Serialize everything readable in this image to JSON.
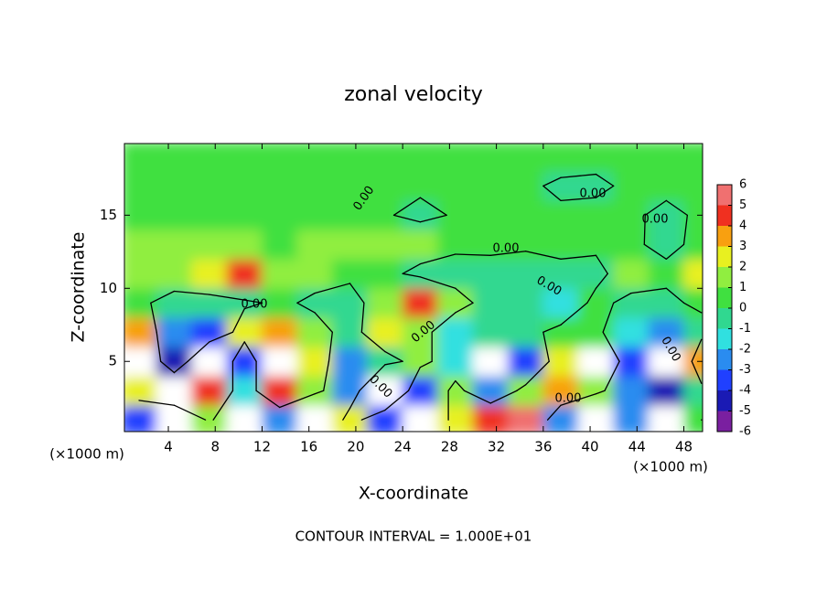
{
  "chart_data": {
    "type": "contour",
    "title": "zonal velocity",
    "xlabel": "X-coordinate",
    "ylabel": "Z-coordinate",
    "x_unit_left": "(×1000 m)",
    "x_unit_right": "(×1000 m)",
    "footnote": "CONTOUR INTERVAL = 1.000E+01",
    "xlim": [
      0.25,
      49.6
    ],
    "ylim": [
      0.2,
      19.9
    ],
    "xticks": [
      4,
      8,
      12,
      16,
      20,
      24,
      28,
      32,
      36,
      40,
      44,
      48
    ],
    "yticks": [
      5,
      10,
      15
    ],
    "x": [
      1.5,
      4.5,
      7.5,
      10.5,
      13.5,
      16.5,
      19.5,
      22.5,
      25.5,
      28.5,
      31.5,
      34.5,
      37.5,
      40.5,
      43.5,
      46.5,
      49.5
    ],
    "z": [
      1,
      3,
      5,
      7,
      9,
      11,
      13,
      15,
      17,
      19
    ],
    "field": [
      [
        -4,
        -8,
        1,
        -8,
        -3,
        -8,
        2,
        -4,
        -8,
        2,
        4,
        5,
        -3,
        -8,
        -3,
        -8,
        0
      ],
      [
        2,
        8,
        4,
        -2,
        4,
        1,
        -3,
        8,
        -4,
        1,
        -3,
        1,
        3,
        1,
        -3,
        -5,
        -1
      ],
      [
        8,
        -5,
        8,
        -4,
        8,
        2,
        -3,
        -1,
        1,
        -2,
        -8,
        -4,
        2,
        8,
        -4,
        -8,
        3
      ],
      [
        3,
        -3,
        -4,
        2,
        3,
        1,
        -1,
        2,
        1,
        -2,
        -1,
        -0.5,
        0.5,
        0.5,
        -2,
        -3,
        -1
      ],
      [
        0.5,
        -1,
        -1,
        -0.5,
        0.5,
        -0.5,
        -1,
        1.5,
        4,
        1,
        -1,
        -0.5,
        -1.5,
        0.5,
        -0.5,
        -0.5,
        0.5
      ],
      [
        1,
        1.5,
        2.5,
        4.5,
        1.5,
        1,
        0.5,
        0.5,
        -0.5,
        -1,
        -0.5,
        -1,
        -0.5,
        -0.5,
        1,
        0.5,
        2
      ],
      [
        1,
        1,
        1,
        1,
        0.5,
        1,
        1,
        1,
        1,
        0.5,
        0.3,
        0.3,
        0.5,
        0.3,
        0.3,
        -0.5,
        0.5
      ],
      [
        0.3,
        0.5,
        0.5,
        0.5,
        0.5,
        0.3,
        0.2,
        0.1,
        -0.3,
        0.1,
        0.2,
        0.3,
        0.2,
        0.3,
        0.2,
        -0.3,
        0.2
      ],
      [
        0.5,
        0.5,
        0.5,
        0.5,
        0.5,
        0.5,
        0.4,
        0.3,
        0.2,
        0.2,
        0.3,
        0.2,
        -0.2,
        -0.2,
        0.2,
        0.3,
        0.3
      ],
      [
        0.5,
        0.5,
        0.5,
        0.5,
        0.5,
        0.5,
        0.5,
        0.3,
        0.3,
        0.2,
        0.2,
        0.3,
        0.5,
        0.3,
        0.5,
        0.5,
        0.3
      ]
    ],
    "contour_level": 0,
    "contour_labels": [
      "0.00",
      "0.00",
      "0.00",
      "0.00",
      "0.00",
      "0.00",
      "0.00",
      "0.00",
      "0.00",
      "0.00"
    ],
    "colorbar_ticks": [
      -6,
      -5,
      -4,
      -3,
      -2,
      -1,
      0,
      1,
      2,
      3,
      4,
      5,
      6
    ],
    "colors": [
      "#7a1fa0",
      "#1a1ab4",
      "#2040ff",
      "#2a8cf0",
      "#30e0e0",
      "#30d890",
      "#40e040",
      "#90ee40",
      "#e8f020",
      "#f8a010",
      "#f03020",
      "#f07070"
    ],
    "out_of_range_color": "#ffffff"
  }
}
